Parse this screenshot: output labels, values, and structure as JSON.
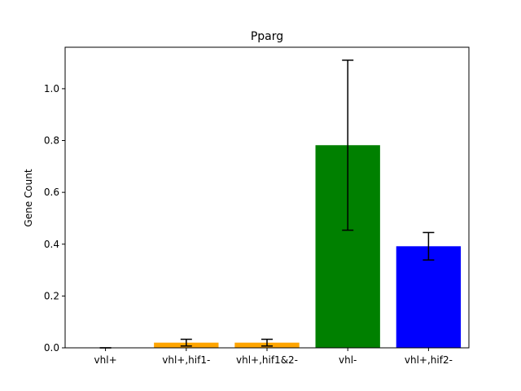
{
  "chart_data": {
    "type": "bar",
    "title": "Pparg",
    "xlabel": "",
    "ylabel": "Gene Count",
    "categories": [
      "vhl+",
      "vhl+,hif1-",
      "vhl+,hif1&2-",
      "vhl-",
      "vhl+,hif2-"
    ],
    "values": [
      0.0,
      0.02,
      0.02,
      0.782,
      0.392
    ],
    "errors": [
      0.0,
      0.013,
      0.013,
      0.328,
      0.053
    ],
    "colors": [
      "#1f77b4",
      "#ffa500",
      "#ffa500",
      "#008000",
      "#0000ff"
    ],
    "ylim": [
      0,
      1.16
    ],
    "yticks": [
      0.0,
      0.2,
      0.4,
      0.6,
      0.8,
      1.0
    ],
    "ytick_labels": [
      "0.0",
      "0.2",
      "0.4",
      "0.6",
      "0.8",
      "1.0"
    ],
    "grid": false,
    "legend": "none"
  }
}
